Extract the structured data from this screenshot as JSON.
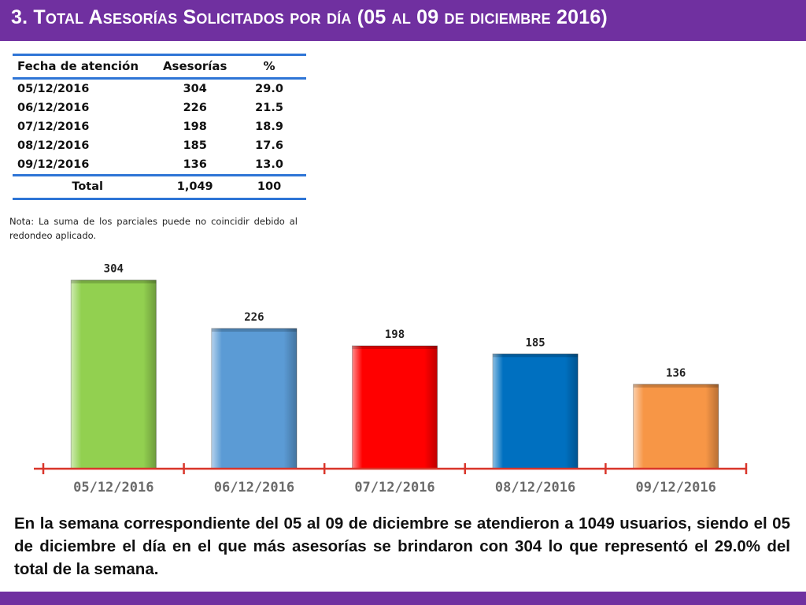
{
  "title": "3.  Total Asesorías Solicitados por día  (05 al 09 de diciembre  2016)",
  "table": {
    "headers": [
      "Fecha de atención",
      "Asesorías",
      "%"
    ],
    "rows": [
      [
        "05/12/2016",
        "304",
        "29.0"
      ],
      [
        "06/12/2016",
        "226",
        "21.5"
      ],
      [
        "07/12/2016",
        "198",
        "18.9"
      ],
      [
        "08/12/2016",
        "185",
        "17.6"
      ],
      [
        "09/12/2016",
        "136",
        "13.0"
      ]
    ],
    "total": [
      "Total",
      "1,049",
      "100"
    ]
  },
  "note": "Nota: La suma de los parciales puede no coincidir debido al redondeo aplicado.",
  "summary": "En la semana correspondiente del 05 al 09 de diciembre se atendieron a 1049 usuarios, siendo el 05 de diciembre el día en el que más asesorías se brindaron con 304 lo que representó el 29.0% del total de la semana.",
  "chart_data": {
    "type": "bar",
    "categories": [
      "05/12/2016",
      "06/12/2016",
      "07/12/2016",
      "08/12/2016",
      "09/12/2016"
    ],
    "values": [
      304,
      226,
      198,
      185,
      136
    ],
    "data_labels": [
      "304",
      "226",
      "198",
      "185",
      "136"
    ],
    "colors": [
      "#92d050",
      "#5b9bd5",
      "#ff0000",
      "#0070c0",
      "#f79646"
    ],
    "axis_color": "#d9352a",
    "title": "",
    "xlabel": "",
    "ylabel": "",
    "ylim": [
      0,
      320
    ],
    "grid": false,
    "legend": "none"
  }
}
